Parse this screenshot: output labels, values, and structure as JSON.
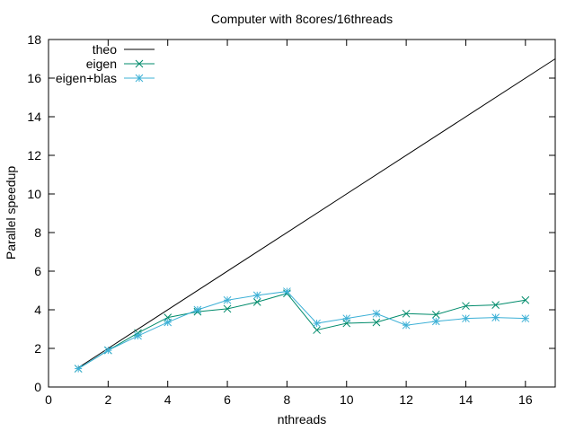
{
  "chart_data": {
    "type": "line",
    "title": "Computer with 8cores/16threads",
    "xlabel": "nthreads",
    "ylabel": "Parallel speedup",
    "xlim": [
      0,
      17
    ],
    "ylim": [
      0,
      18
    ],
    "xticks": [
      0,
      2,
      4,
      6,
      8,
      10,
      12,
      14,
      16
    ],
    "yticks": [
      0,
      2,
      4,
      6,
      8,
      10,
      12,
      14,
      16,
      18
    ],
    "grid": false,
    "legend_position": "top-left",
    "series": [
      {
        "name": "theo",
        "color": "#000000",
        "marker": "none",
        "x": [
          1,
          17
        ],
        "y": [
          1,
          17
        ]
      },
      {
        "name": "eigen",
        "color": "#008b6b",
        "marker": "x",
        "x": [
          1,
          2,
          3,
          4,
          5,
          6,
          7,
          8,
          9,
          10,
          11,
          12,
          13,
          14,
          15,
          16
        ],
        "y": [
          0.95,
          1.9,
          2.8,
          3.6,
          3.9,
          4.05,
          4.4,
          4.85,
          2.95,
          3.3,
          3.35,
          3.8,
          3.75,
          4.2,
          4.25,
          4.5
        ]
      },
      {
        "name": "eigen+blas",
        "color": "#3cb0d6",
        "marker": "star",
        "x": [
          1,
          2,
          3,
          4,
          5,
          6,
          7,
          8,
          9,
          10,
          11,
          12,
          13,
          14,
          15,
          16
        ],
        "y": [
          0.95,
          1.9,
          2.65,
          3.35,
          4.0,
          4.5,
          4.75,
          4.95,
          3.3,
          3.55,
          3.8,
          3.2,
          3.4,
          3.55,
          3.6,
          3.55
        ]
      }
    ]
  }
}
